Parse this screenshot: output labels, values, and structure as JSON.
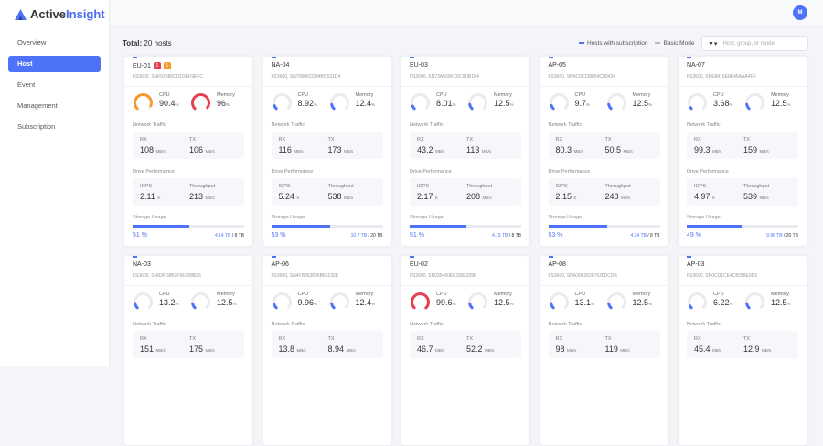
{
  "app": {
    "name_part1": "Active",
    "name_part2": "Insight",
    "avatar": "M"
  },
  "colors": {
    "accent": "#4f73f8",
    "warning": "#f79a2b",
    "danger": "#e8404f",
    "track": "#e9ebf0"
  },
  "sidebar": {
    "items": [
      {
        "label": "Overview"
      },
      {
        "label": "Host",
        "active": true
      },
      {
        "label": "Event"
      },
      {
        "label": "Management"
      },
      {
        "label": "Subscription"
      }
    ]
  },
  "toolbar": {
    "total_label": "Total:",
    "total_value": "20 hosts",
    "legend_subscription": "Hosts with subscription",
    "legend_basic": "Basic Mode",
    "filter_icon": "filter-icon",
    "search_placeholder": "Host, group, or model"
  },
  "labels": {
    "cpu": "CPU",
    "memory": "Memory",
    "network": "Network Traffic",
    "rx": "RX",
    "tx": "TX",
    "drive": "Drive Performance",
    "iops": "IOPS",
    "throughput": "Throughput",
    "storage": "Storage Usage",
    "pct_unit": "%",
    "mbs": "MB/s",
    "k": "K"
  },
  "hosts": [
    {
      "name": "EU-01",
      "badges": [
        {
          "text": "1",
          "color": "#e8404f"
        },
        {
          "text": "1",
          "color": "#f79a2b"
        }
      ],
      "serial": "FS3600, SNF02686DDD2EF9EFC",
      "cpu": "90.4",
      "memory": "96",
      "rx": "108",
      "tx": "106",
      "iops": "2.11",
      "throughput": "213",
      "storage_pct": 51,
      "storage_pct_label": "51 %",
      "used": "4.14 TB",
      "total": " / 8 TB"
    },
    {
      "name": "NA-04",
      "serial": "FS3600, SN70805CD84BC531D4",
      "cpu": "8.92",
      "memory": "12.4",
      "rx": "116",
      "tx": "173",
      "iops": "5.24",
      "throughput": "538",
      "storage_pct": 53,
      "storage_pct_label": "53 %",
      "used": "10.7 TB",
      "total": " / 20 TB"
    },
    {
      "name": "EU-03",
      "serial": "FS3600, SN73A509FC6C9DB1F4",
      "cpu": "8.01",
      "memory": "12.5",
      "rx": "43.2",
      "tx": "113",
      "iops": "2.17",
      "throughput": "208",
      "storage_pct": 51,
      "storage_pct_label": "51 %",
      "used": "4.15 TB",
      "total": " / 8 TB"
    },
    {
      "name": "AP-05",
      "serial": "FS3600, SN4C05138854C80434",
      "cpu": "9.7",
      "memory": "12.5",
      "rx": "80.3",
      "tx": "50.5",
      "iops": "2.15",
      "throughput": "248",
      "storage_pct": 53,
      "storage_pct_label": "53 %",
      "used": "4.24 TB",
      "total": " / 8 TB"
    },
    {
      "name": "NA-07",
      "serial": "FS3600, SNE8415E8E46AAA4FE",
      "cpu": "3.68",
      "memory": "12.5",
      "rx": "99.3",
      "tx": "159",
      "iops": "4.97",
      "throughput": "539",
      "storage_pct": 49,
      "storage_pct_label": "49 %",
      "used": "9.98 TB",
      "total": " / 20 TB"
    },
    {
      "name": "NA-03",
      "serial": "FS3600, SN83FD8B2F9E188B36",
      "cpu": "13.2",
      "memory": "12.5",
      "rx": "151",
      "tx": "175"
    },
    {
      "name": "AP-06",
      "serial": "FS3600, SN4FB853806B66132E",
      "cpu": "9.96",
      "memory": "12.4",
      "rx": "13.8",
      "tx": "8.94"
    },
    {
      "name": "EU-02",
      "serial": "FS3600, SN035460EE1583339F",
      "cpu": "99.6",
      "memory": "12.5",
      "rx": "46.7",
      "tx": "52.2"
    },
    {
      "name": "AP-08",
      "serial": "FS3600, SNA30835287630DCDB",
      "cpu": "13.1",
      "memory": "12.5",
      "rx": "98",
      "tx": "119"
    },
    {
      "name": "AP-03",
      "serial": "FS3600, SN0CD1CE4C8258E9D6",
      "cpu": "6.22",
      "memory": "12.5",
      "rx": "45.4",
      "tx": "12.9"
    }
  ]
}
